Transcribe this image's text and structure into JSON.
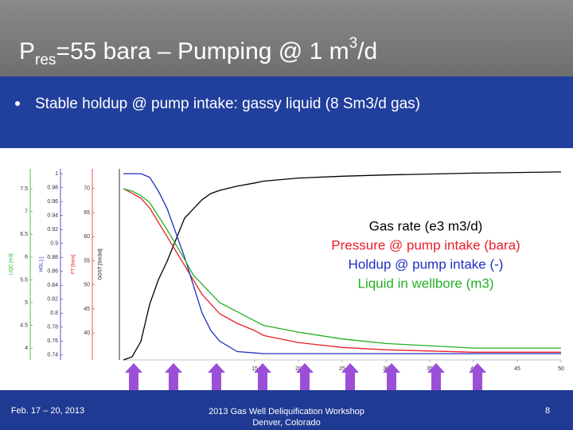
{
  "header": {
    "title_parts": [
      "P",
      "res",
      "=55 bara – Pumping @ 1 m",
      "3",
      "/d"
    ]
  },
  "bullet": "Stable holdup @ pump intake: gassy liquid (8 Sm3/d gas)",
  "chart_data": {
    "type": "line",
    "x": [
      0,
      1,
      2,
      3,
      4,
      5,
      7,
      8,
      9,
      10,
      11,
      13,
      15,
      16,
      20,
      25,
      30,
      40,
      50
    ],
    "xlim": [
      0,
      50
    ],
    "xticks": [
      15,
      20,
      25,
      30,
      35,
      40,
      45,
      50
    ],
    "series": [
      {
        "name": "Gas rate (e3 m3/d)",
        "color": "#000000",
        "ylabel": "GOST [Sm3/d]",
        "ylim": [
          0,
          3.1
        ],
        "values": [
          0,
          0.05,
          0.3,
          0.9,
          1.3,
          1.6,
          2.3,
          2.45,
          2.6,
          2.7,
          2.75,
          2.82,
          2.87,
          2.9,
          2.95,
          2.98,
          3.0,
          3.03,
          3.05
        ]
      },
      {
        "name": "Pressure @ pump intake (bara)",
        "color": "#e8202a",
        "ylabel": "PT [bara]",
        "ylim": [
          34.4,
          74.1
        ],
        "yticks": [
          40,
          45,
          50,
          55,
          60,
          65,
          70
        ],
        "values": [
          70,
          69,
          68,
          66,
          63,
          60,
          54,
          51,
          48,
          46,
          44,
          42,
          40.5,
          39.5,
          38,
          37,
          36.5,
          36,
          36
        ]
      },
      {
        "name": "Holdup @ pump intake (-)",
        "color": "#1f2fc0",
        "ylabel": "HOL [-]",
        "ylim": [
          0.733,
          1.007
        ],
        "yticks": [
          0.74,
          0.76,
          0.78,
          0.8,
          0.82,
          0.84,
          0.86,
          0.88,
          0.9,
          0.92,
          0.94,
          0.96,
          0.98,
          1
        ],
        "values": [
          1.0,
          1.0,
          1.0,
          0.995,
          0.975,
          0.95,
          0.88,
          0.84,
          0.8,
          0.775,
          0.76,
          0.745,
          0.743,
          0.742,
          0.742,
          0.742,
          0.742,
          0.742,
          0.742
        ]
      },
      {
        "name": "Liquid in wellbore (m3)",
        "color": "#22b022",
        "ylabel": "LIQC [m3]",
        "ylim": [
          3.74,
          7.94
        ],
        "yticks": [
          4,
          4.5,
          5,
          5.5,
          6,
          6.5,
          7,
          7.5
        ],
        "values": [
          7.5,
          7.45,
          7.35,
          7.2,
          6.9,
          6.6,
          5.95,
          5.6,
          5.4,
          5.2,
          5.0,
          4.8,
          4.6,
          4.5,
          4.35,
          4.2,
          4.1,
          4.0,
          4.0
        ]
      }
    ]
  },
  "footer": {
    "date": "Feb. 17 – 20, 2013",
    "event": [
      "2013 Gas Well Deliquification Workshop",
      "Denver, Colorado"
    ],
    "page": "8"
  }
}
